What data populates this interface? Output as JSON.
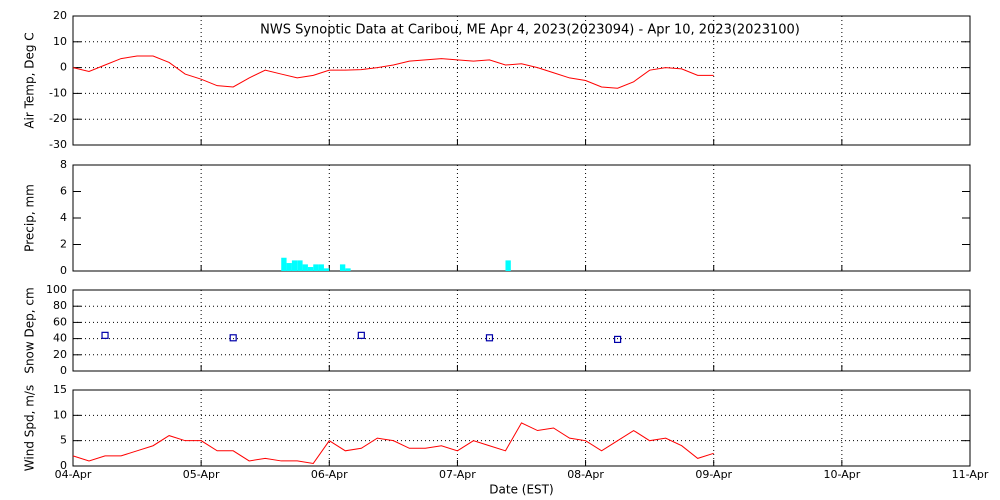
{
  "chart_data": [
    {
      "type": "line",
      "title": "NWS Synoptic Data at Caribou, ME   Apr  4, 2023(2023094) - Apr 10, 2023(2023100)",
      "y_label": "Air Temp, Deg C",
      "xlim": [
        0,
        7
      ],
      "ylim": [
        -30,
        20
      ],
      "yticks": [
        -30,
        -20,
        -10,
        0,
        10,
        20
      ],
      "grid": true,
      "x": [
        0,
        0.125,
        0.25,
        0.375,
        0.5,
        0.625,
        0.75,
        0.875,
        1,
        1.125,
        1.25,
        1.375,
        1.5,
        1.625,
        1.75,
        1.875,
        2,
        2.125,
        2.25,
        2.375,
        2.5,
        2.625,
        2.75,
        2.875,
        3,
        3.125,
        3.25,
        3.375,
        3.5,
        3.625,
        3.75,
        3.875,
        4,
        4.125,
        4.25,
        4.375,
        4.5,
        4.625,
        4.75,
        4.875,
        5
      ],
      "series": [
        {
          "color": "#ff0000",
          "values": [
            0,
            -1.5,
            1,
            3.5,
            4.5,
            4.5,
            2,
            -2.5,
            -4.5,
            -7,
            -7.5,
            -4,
            -1,
            -2.5,
            -4,
            -3,
            -1,
            -1,
            -0.8,
            0,
            1,
            2.5,
            3,
            3.5,
            3,
            2.5,
            3,
            1,
            1.5,
            0,
            -2,
            -4,
            -5,
            -7.5,
            -8,
            -5.5,
            -1,
            0,
            -0.5,
            -3,
            -3
          ]
        }
      ]
    },
    {
      "type": "bar",
      "y_label": "Precip, mm",
      "xlim": [
        0,
        7
      ],
      "ylim": [
        0,
        8
      ],
      "yticks": [
        0,
        2,
        4,
        6,
        8
      ],
      "grid": false,
      "x": [
        1.625,
        1.6667,
        1.7083,
        1.75,
        1.7917,
        1.8333,
        1.875,
        1.9167,
        1.9583,
        2.0833,
        2.125,
        3.375
      ],
      "series": [
        {
          "color": "#00ffff",
          "values": [
            1.0,
            0.6,
            0.8,
            0.8,
            0.5,
            0.3,
            0.5,
            0.5,
            0.2,
            0.5,
            0.2,
            0.8
          ]
        }
      ]
    },
    {
      "type": "scatter",
      "y_label": "Snow Dep, cm",
      "xlim": [
        0,
        7
      ],
      "ylim": [
        0,
        100
      ],
      "yticks": [
        0,
        20,
        40,
        60,
        80,
        100
      ],
      "grid": true,
      "x": [
        0.25,
        1.25,
        2.25,
        3.25,
        4.25
      ],
      "series": [
        {
          "color": "#0000aa",
          "values": [
            44,
            41,
            44,
            41,
            39
          ]
        }
      ]
    },
    {
      "type": "line",
      "y_label": "Wind Spd, m/s",
      "x_label": "Date (EST)",
      "xlim": [
        0,
        7
      ],
      "ylim": [
        0,
        15
      ],
      "yticks": [
        0,
        5,
        10,
        15
      ],
      "grid": true,
      "xticks": [
        {
          "value": 0,
          "label": "04-Apr"
        },
        {
          "value": 1,
          "label": "05-Apr"
        },
        {
          "value": 2,
          "label": "06-Apr"
        },
        {
          "value": 3,
          "label": "07-Apr"
        },
        {
          "value": 4,
          "label": "08-Apr"
        },
        {
          "value": 5,
          "label": "09-Apr"
        },
        {
          "value": 6,
          "label": "10-Apr"
        },
        {
          "value": 7,
          "label": "11-Apr"
        }
      ],
      "x": [
        0,
        0.125,
        0.25,
        0.375,
        0.5,
        0.625,
        0.75,
        0.875,
        1,
        1.125,
        1.25,
        1.375,
        1.5,
        1.625,
        1.75,
        1.875,
        2,
        2.125,
        2.25,
        2.375,
        2.5,
        2.625,
        2.75,
        2.875,
        3,
        3.125,
        3.25,
        3.375,
        3.5,
        3.625,
        3.75,
        3.875,
        4,
        4.125,
        4.25,
        4.375,
        4.5,
        4.625,
        4.75,
        4.875,
        5
      ],
      "series": [
        {
          "color": "#ff0000",
          "values": [
            2,
            1,
            2,
            2,
            3,
            4,
            6,
            5,
            5,
            3,
            3,
            1,
            1.5,
            1,
            1,
            0.5,
            5,
            3,
            3.5,
            5.5,
            5,
            3.5,
            3.5,
            4,
            3,
            5,
            4,
            3,
            8.5,
            7,
            7.5,
            5.5,
            5,
            3,
            5,
            7,
            5,
            5.5,
            4,
            1.5,
            2.5
          ]
        }
      ]
    }
  ]
}
